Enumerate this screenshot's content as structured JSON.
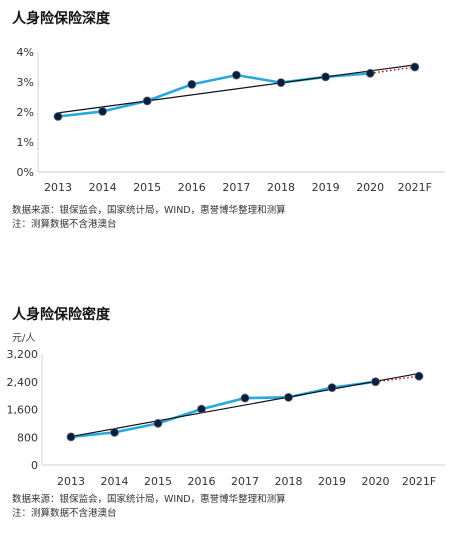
{
  "chart_data": [
    {
      "type": "line",
      "title": "人身险保险深度",
      "unit": "",
      "categories": [
        "2013",
        "2014",
        "2015",
        "2016",
        "2017",
        "2018",
        "2019",
        "2020",
        "2021F"
      ],
      "y_tick_labels": [
        "0%",
        "1%",
        "2%",
        "3%",
        "4%"
      ],
      "ylim": [
        0,
        4
      ],
      "series": [
        {
          "values": [
            1.85,
            2.02,
            2.37,
            2.92,
            3.23,
            2.98,
            3.17,
            3.29,
            3.5
          ]
        }
      ],
      "trendline": {
        "start": 1.97,
        "end": 3.57
      },
      "forecast_from_index": 7,
      "colors": {
        "line": "#29a8e0",
        "marker": "#0b1f3a",
        "trend": "#111111",
        "forecast": "#c00000",
        "axis": "#d0d0d0"
      },
      "legend": "none",
      "grid": false,
      "source": "数据来源：银保监会，国家统计局，WIND，惠誉博华整理和测算",
      "note": "注：测算数据不含港澳台"
    },
    {
      "type": "line",
      "title": "人身险保险密度",
      "unit": "元/人",
      "categories": [
        "2013",
        "2014",
        "2015",
        "2016",
        "2017",
        "2018",
        "2019",
        "2020",
        "2021F"
      ],
      "y_tick_labels": [
        "0",
        "800",
        "1,600",
        "2,400",
        "3,200"
      ],
      "ylim": [
        0,
        3200
      ],
      "series": [
        {
          "values": [
            810,
            940,
            1200,
            1610,
            1930,
            1950,
            2230,
            2400,
            2560
          ]
        }
      ],
      "trendline": {
        "start": 820,
        "end": 2640
      },
      "forecast_from_index": 7,
      "colors": {
        "line": "#29a8e0",
        "marker": "#0b1f3a",
        "trend": "#111111",
        "forecast": "#c00000",
        "axis": "#d0d0d0"
      },
      "legend": "none",
      "grid": false,
      "source": "数据来源：银保监会，国家统计局，WIND，惠誉博华整理和测算",
      "note": "注：测算数据不含港澳台"
    }
  ]
}
